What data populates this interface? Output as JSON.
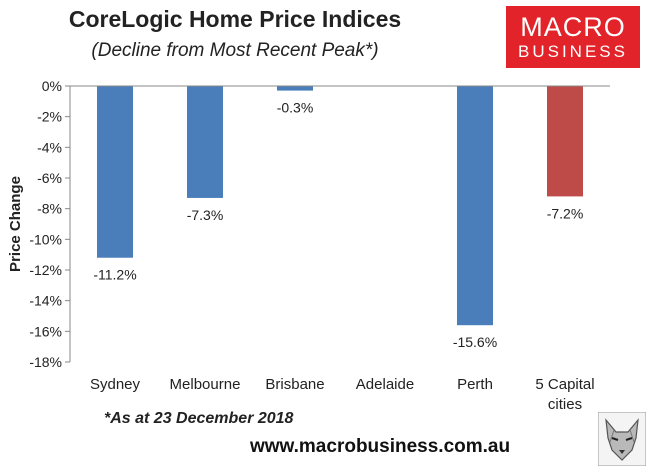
{
  "header": {
    "title": "CoreLogic Home Price Indices",
    "subtitle": "(Decline from Most Recent Peak*)"
  },
  "logo": {
    "line1": "MACRO",
    "line2": "BUSINESS",
    "color": "#e2242a"
  },
  "footer": {
    "note": "*As at 23 December 2018",
    "website": "www.macrobusiness.com.au",
    "badge_icon": "wolf-icon"
  },
  "chart_data": {
    "type": "bar",
    "title": "CoreLogic Home Price Indices",
    "subtitle": "(Decline from Most Recent Peak*)",
    "ylabel": "Price Change",
    "ylim": [
      -18,
      0
    ],
    "yticks": [
      0,
      -2,
      -4,
      -6,
      -8,
      -10,
      -12,
      -14,
      -16,
      -18
    ],
    "ytick_labels": [
      "0%",
      "-2%",
      "-4%",
      "-6%",
      "-8%",
      "-10%",
      "-12%",
      "-14%",
      "-16%",
      "-18%"
    ],
    "categories": [
      [
        "Sydney"
      ],
      [
        "Melbourne"
      ],
      [
        "Brisbane"
      ],
      [
        "Adelaide"
      ],
      [
        "Perth"
      ],
      [
        "5 Capital",
        "cities"
      ]
    ],
    "values": [
      -11.2,
      -7.3,
      -0.3,
      null,
      -15.6,
      -7.2
    ],
    "labels": [
      "-11.2%",
      "-7.3%",
      "-0.3%",
      "",
      "-15.6%",
      "-7.2%"
    ],
    "colors": [
      "#4a7ebb",
      "#4a7ebb",
      "#4a7ebb",
      "#4a7ebb",
      "#4a7ebb",
      "#be4b48"
    ],
    "grid": false,
    "legend": "none"
  }
}
